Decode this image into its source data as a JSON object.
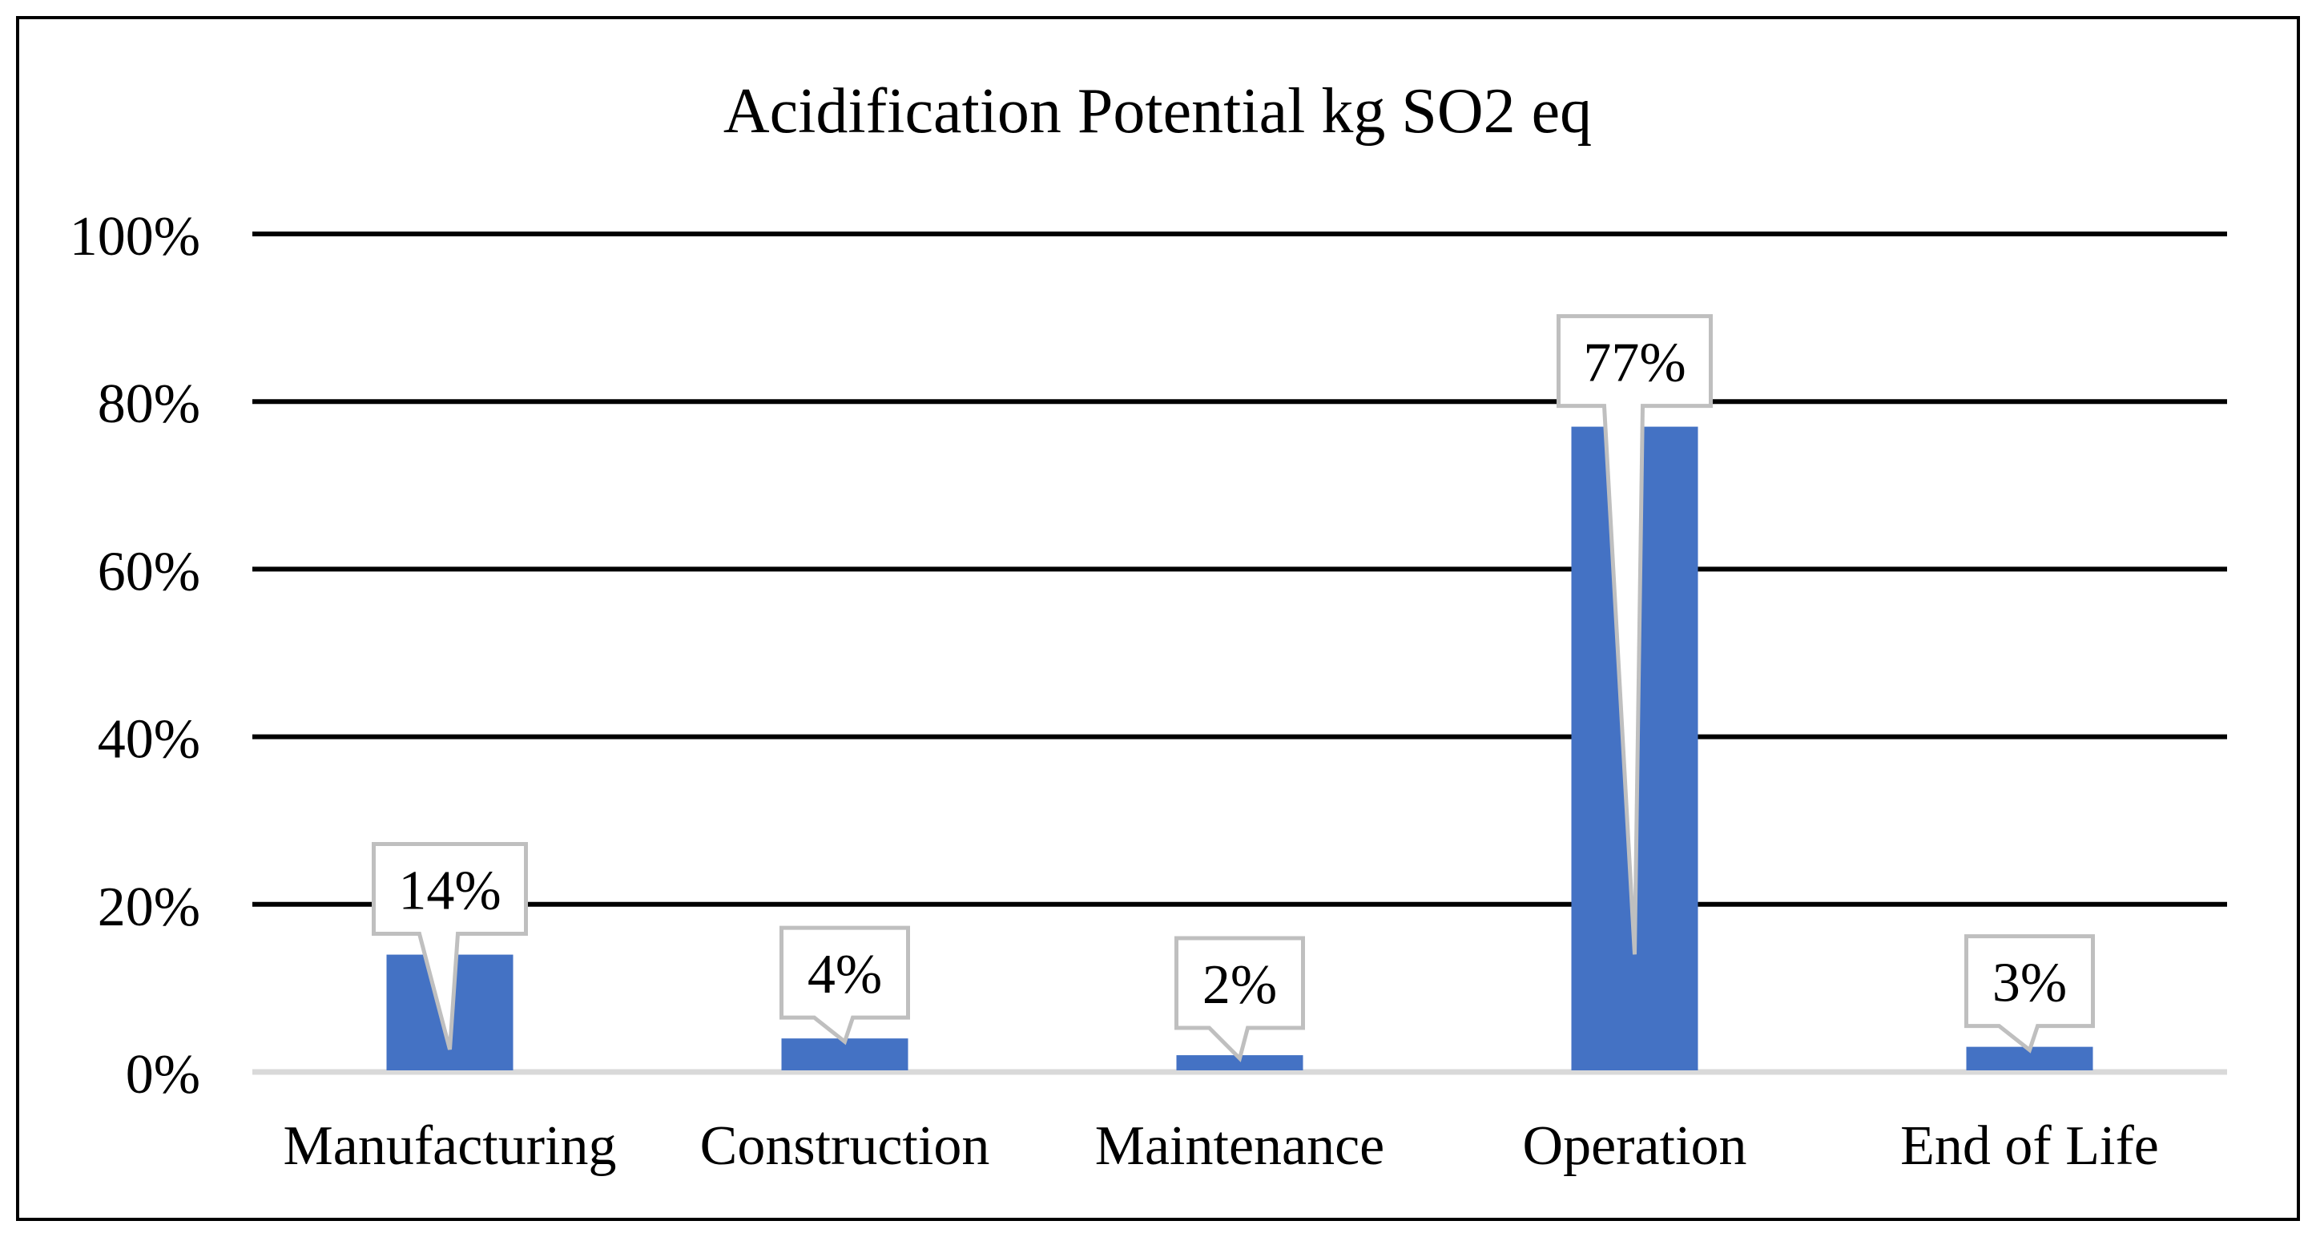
{
  "chart_data": {
    "type": "bar",
    "title": "Acidification Potential kg SO2 eq",
    "categories": [
      "Manufacturing",
      "Construction",
      "Maintenance",
      "Operation",
      "End of Life"
    ],
    "values": [
      14,
      4,
      2,
      77,
      3
    ],
    "data_labels": [
      "14%",
      "4%",
      "2%",
      "77%",
      "3%"
    ],
    "y_ticks": [
      0,
      20,
      40,
      60,
      80,
      100
    ],
    "y_tick_labels": [
      "0%",
      "20%",
      "40%",
      "60%",
      "80%",
      "100%"
    ],
    "ylim": [
      0,
      100
    ],
    "xlabel": "",
    "ylabel": "",
    "grid": true,
    "legend": "none",
    "colors": {
      "bar": "#4472C4",
      "gridline": "#000000",
      "baseline": "#D9D9D9",
      "callout_border": "#BFBFBF",
      "frame": "#000000"
    }
  }
}
